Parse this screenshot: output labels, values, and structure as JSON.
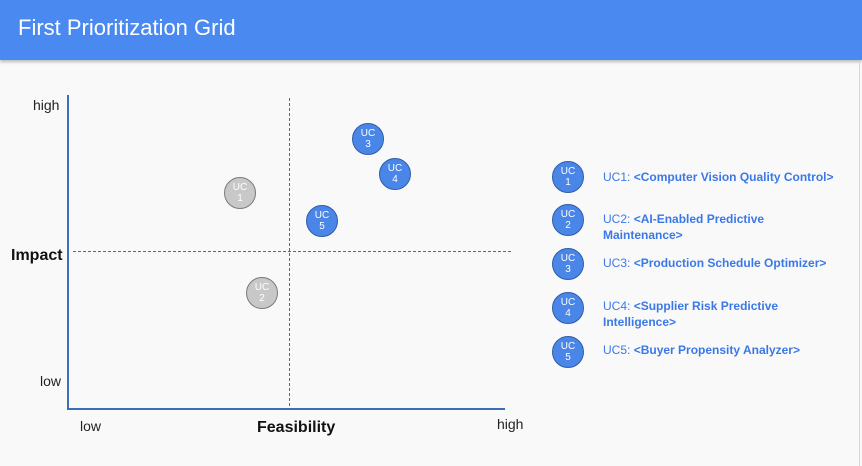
{
  "header": {
    "title": "First Prioritization Grid"
  },
  "axes": {
    "y_title": "Impact",
    "y_high": "high",
    "y_low": "low",
    "x_title": "Feasibility",
    "x_low": "low",
    "x_high": "high"
  },
  "bubbles": [
    {
      "id": "uc1",
      "line1": "UC",
      "line2": "1",
      "style": "grey"
    },
    {
      "id": "uc2",
      "line1": "UC",
      "line2": "2",
      "style": "grey"
    },
    {
      "id": "uc3",
      "line1": "UC",
      "line2": "3",
      "style": "blue"
    },
    {
      "id": "uc4",
      "line1": "UC",
      "line2": "4",
      "style": "blue"
    },
    {
      "id": "uc5",
      "line1": "UC",
      "line2": "5",
      "style": "blue"
    }
  ],
  "legend": [
    {
      "line1": "UC",
      "line2": "1",
      "code": "UC1: ",
      "name": "<Computer Vision Quality Control>"
    },
    {
      "line1": "UC",
      "line2": "2",
      "code": "UC2: ",
      "name": "<AI-Enabled Predictive Maintenance>"
    },
    {
      "line1": "UC",
      "line2": "3",
      "code": "UC3: ",
      "name": "<Production Schedule Optimizer>"
    },
    {
      "line1": "UC",
      "line2": "4",
      "code": "UC4: ",
      "name": "<Supplier Risk Predictive Intelligence>"
    },
    {
      "line1": "UC",
      "line2": "5",
      "code": "UC5: ",
      "name": "<Buyer Propensity Analyzer>"
    }
  ],
  "colors": {
    "header": "#4a89f0",
    "bubble_blue": "#4a86e8",
    "bubble_grey": "#c8c8c8",
    "legend_text": "#3b78e7"
  }
}
